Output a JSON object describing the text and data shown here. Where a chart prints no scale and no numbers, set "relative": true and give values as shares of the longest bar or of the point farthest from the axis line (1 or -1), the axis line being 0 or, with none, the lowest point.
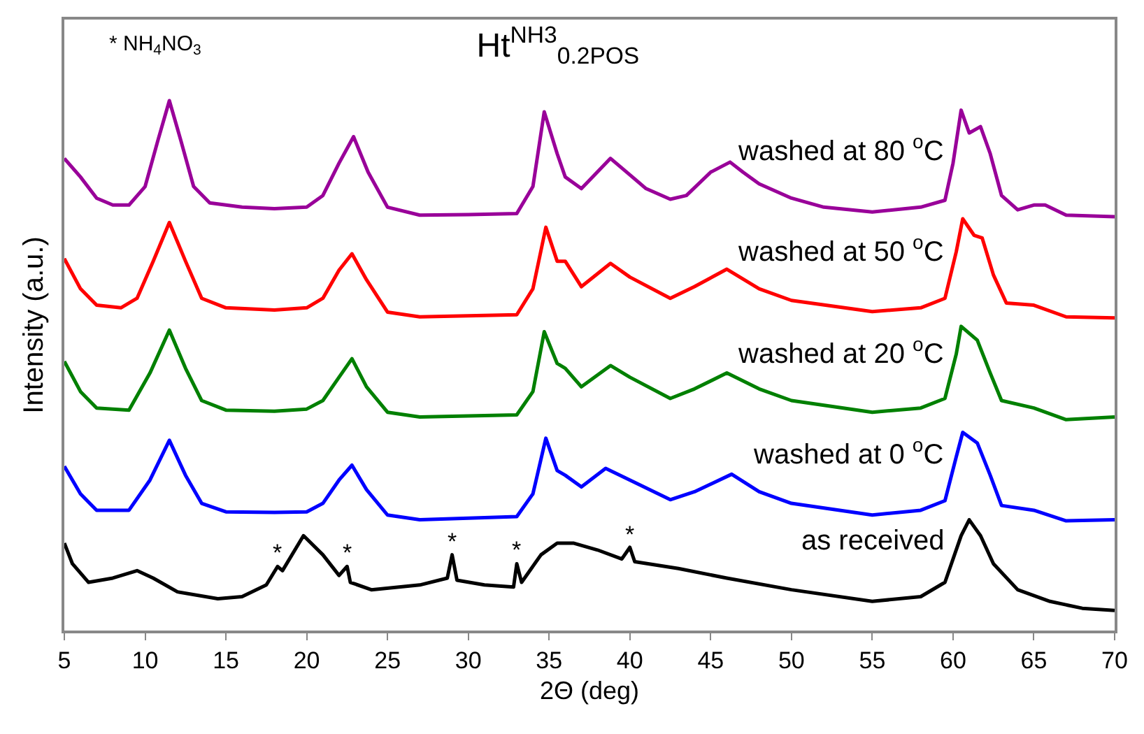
{
  "chart_data": {
    "type": "line",
    "title": "Ht$^{NH3}$$_{0.2POS}$",
    "xlabel": "2Θ (deg)",
    "ylabel": "Intensity (a.u.)",
    "relative": true,
    "xlim": [
      5,
      70
    ],
    "xticks": [
      5,
      10,
      15,
      20,
      25,
      30,
      35,
      40,
      45,
      50,
      55,
      60,
      65,
      70
    ],
    "legend": false,
    "marker": "none",
    "line_style": "solid",
    "series": [
      {
        "name": "washed at 80 $^{o}$C",
        "color": "#990099",
        "x": [
          5,
          6,
          7,
          8,
          9,
          10,
          10.8,
          11.5,
          12.2,
          13,
          14,
          16,
          18,
          20,
          21,
          22,
          22.9,
          23.8,
          25,
          27,
          30,
          33,
          34,
          34.7,
          35.5,
          36,
          37,
          38.8,
          40,
          41,
          42.5,
          43.5,
          45,
          46.2,
          47,
          48,
          50,
          52,
          55,
          58,
          59.5,
          60,
          60.5,
          61,
          61.7,
          62.3,
          63,
          64,
          65,
          65.7,
          67,
          70
        ],
        "values": [
          0.891,
          0.856,
          0.816,
          0.803,
          0.803,
          0.838,
          0.926,
          1.0,
          0.926,
          0.838,
          0.807,
          0.799,
          0.796,
          0.799,
          0.821,
          0.882,
          0.932,
          0.865,
          0.799,
          0.784,
          0.785,
          0.787,
          0.838,
          0.979,
          0.9,
          0.856,
          0.834,
          0.891,
          0.86,
          0.834,
          0.814,
          0.821,
          0.865,
          0.884,
          0.865,
          0.843,
          0.816,
          0.799,
          0.79,
          0.799,
          0.812,
          0.882,
          0.982,
          0.939,
          0.951,
          0.9,
          0.821,
          0.794,
          0.803,
          0.803,
          0.784,
          0.781
        ]
      },
      {
        "name": "washed at 50 $^{o}$C",
        "color": "#ff0000",
        "x": [
          5,
          6,
          7,
          8.5,
          9.5,
          10.5,
          11.5,
          12.5,
          13.5,
          15,
          18,
          20,
          21,
          22,
          22.8,
          23.7,
          25,
          27,
          30,
          33,
          34,
          34.8,
          35.5,
          36,
          37,
          38.8,
          40,
          42.5,
          44,
          46,
          48,
          50,
          55,
          58,
          59.5,
          60.2,
          60.6,
          61.3,
          61.8,
          62.5,
          63.3,
          65,
          67,
          70
        ],
        "values": [
          0.702,
          0.645,
          0.614,
          0.609,
          0.627,
          0.697,
          0.77,
          0.697,
          0.627,
          0.609,
          0.605,
          0.609,
          0.627,
          0.68,
          0.711,
          0.662,
          0.601,
          0.592,
          0.594,
          0.596,
          0.645,
          0.761,
          0.697,
          0.697,
          0.649,
          0.693,
          0.667,
          0.627,
          0.649,
          0.682,
          0.645,
          0.623,
          0.602,
          0.609,
          0.627,
          0.715,
          0.777,
          0.746,
          0.741,
          0.671,
          0.618,
          0.614,
          0.592,
          0.59
        ]
      },
      {
        "name": "washed at 20 $^{o}$C",
        "color": "#008000",
        "x": [
          5,
          6,
          7,
          9,
          10.3,
          11.5,
          12.5,
          13.5,
          15,
          18,
          20,
          21,
          22,
          22.8,
          23.7,
          25,
          27,
          30,
          33,
          34,
          34.7,
          35.5,
          36,
          37,
          38.8,
          40,
          42.5,
          44,
          46,
          48,
          50,
          55,
          58,
          59.5,
          60.2,
          60.5,
          61.5,
          62.3,
          63,
          65,
          67,
          70
        ],
        "values": [
          0.508,
          0.451,
          0.42,
          0.416,
          0.486,
          0.567,
          0.495,
          0.434,
          0.416,
          0.414,
          0.418,
          0.434,
          0.478,
          0.513,
          0.46,
          0.412,
          0.403,
          0.405,
          0.407,
          0.451,
          0.564,
          0.504,
          0.495,
          0.46,
          0.5,
          0.478,
          0.438,
          0.456,
          0.486,
          0.456,
          0.434,
          0.412,
          0.42,
          0.438,
          0.522,
          0.574,
          0.548,
          0.486,
          0.434,
          0.42,
          0.398,
          0.403
        ]
      },
      {
        "name": "washed at 0 $^{o}$C",
        "color": "#0000ff",
        "x": [
          5,
          6,
          7,
          9,
          10.3,
          11.5,
          12.5,
          13.5,
          15,
          18,
          20,
          21,
          22,
          22.8,
          23.7,
          25,
          27,
          30,
          33,
          34,
          34.8,
          35.5,
          36,
          37,
          38.5,
          40,
          42.5,
          44,
          46.3,
          48,
          50,
          55,
          58,
          59.5,
          60.2,
          60.6,
          61.5,
          62.3,
          63,
          65,
          67,
          70
        ],
        "values": [
          0.31,
          0.258,
          0.227,
          0.227,
          0.284,
          0.359,
          0.293,
          0.24,
          0.224,
          0.223,
          0.224,
          0.24,
          0.284,
          0.312,
          0.266,
          0.218,
          0.209,
          0.212,
          0.215,
          0.258,
          0.363,
          0.302,
          0.293,
          0.271,
          0.306,
          0.284,
          0.247,
          0.262,
          0.295,
          0.262,
          0.24,
          0.218,
          0.227,
          0.245,
          0.328,
          0.374,
          0.354,
          0.293,
          0.236,
          0.227,
          0.207,
          0.209
        ]
      },
      {
        "name": "as received",
        "color": "#000000",
        "x": [
          5,
          5.5,
          6.5,
          8,
          9.5,
          10.5,
          12,
          14.5,
          16,
          17.5,
          18.2,
          18.5,
          19.8,
          21,
          22,
          22.5,
          22.7,
          24,
          27,
          28.7,
          29,
          29.3,
          31,
          32.8,
          33,
          33.3,
          34.5,
          35.5,
          36.5,
          38,
          39.5,
          40,
          40.3,
          43,
          46,
          50,
          55,
          58,
          59.5,
          60.5,
          61,
          61.7,
          62.5,
          64,
          66,
          68,
          70
        ],
        "values": [
          0.165,
          0.126,
          0.091,
          0.099,
          0.113,
          0.099,
          0.073,
          0.06,
          0.064,
          0.086,
          0.121,
          0.113,
          0.179,
          0.143,
          0.104,
          0.121,
          0.091,
          0.077,
          0.086,
          0.099,
          0.143,
          0.095,
          0.086,
          0.082,
          0.126,
          0.091,
          0.143,
          0.165,
          0.165,
          0.152,
          0.135,
          0.157,
          0.13,
          0.117,
          0.099,
          0.077,
          0.055,
          0.064,
          0.091,
          0.179,
          0.209,
          0.179,
          0.126,
          0.077,
          0.055,
          0.042,
          0.038
        ]
      }
    ],
    "annotations": [
      "* NH$_{4}$NO$_{3}$",
      {
        "text": "*",
        "x": 18.2,
        "y": 0.121
      },
      {
        "text": "*",
        "x": 22.5,
        "y": 0.121
      },
      {
        "text": "*",
        "x": 29,
        "y": 0.143
      },
      {
        "text": "*",
        "x": 33,
        "y": 0.126
      },
      {
        "text": "*",
        "x": 40,
        "y": 0.157
      }
    ]
  }
}
